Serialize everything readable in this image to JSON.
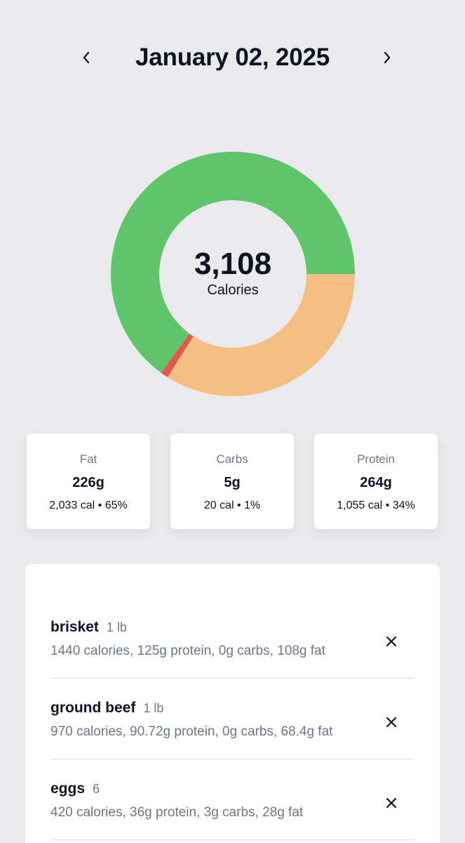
{
  "header": {
    "date": "January 02, 2025",
    "prev_icon": "chevron-left-icon",
    "next_icon": "chevron-right-icon"
  },
  "summary": {
    "total_calories": "3,108",
    "calories_label": "Calories"
  },
  "chart_data": {
    "type": "pie",
    "categories": [
      "Fat",
      "Carbs",
      "Protein"
    ],
    "values": [
      65,
      1,
      34
    ],
    "colors": [
      "#5fc56a",
      "#e3584c",
      "#f3be82"
    ],
    "donut": true,
    "title": ""
  },
  "macros": [
    {
      "name": "Fat",
      "grams": "226g",
      "detail": "2,033 cal • 65%"
    },
    {
      "name": "Carbs",
      "grams": "5g",
      "detail": "20 cal • 1%"
    },
    {
      "name": "Protein",
      "grams": "264g",
      "detail": "1,055 cal • 34%"
    }
  ],
  "foods": [
    {
      "name": "brisket",
      "quantity": "1 lb",
      "macros": "1440 calories, 125g protein, 0g carbs, 108g fat",
      "remove_icon": "close-icon"
    },
    {
      "name": "ground beef",
      "quantity": "1 lb",
      "macros": "970 calories, 90.72g protein, 0g carbs, 68.4g fat",
      "remove_icon": "close-icon"
    },
    {
      "name": "eggs",
      "quantity": "6",
      "macros": "420 calories, 36g protein, 3g carbs, 28g fat",
      "remove_icon": "close-icon"
    }
  ]
}
